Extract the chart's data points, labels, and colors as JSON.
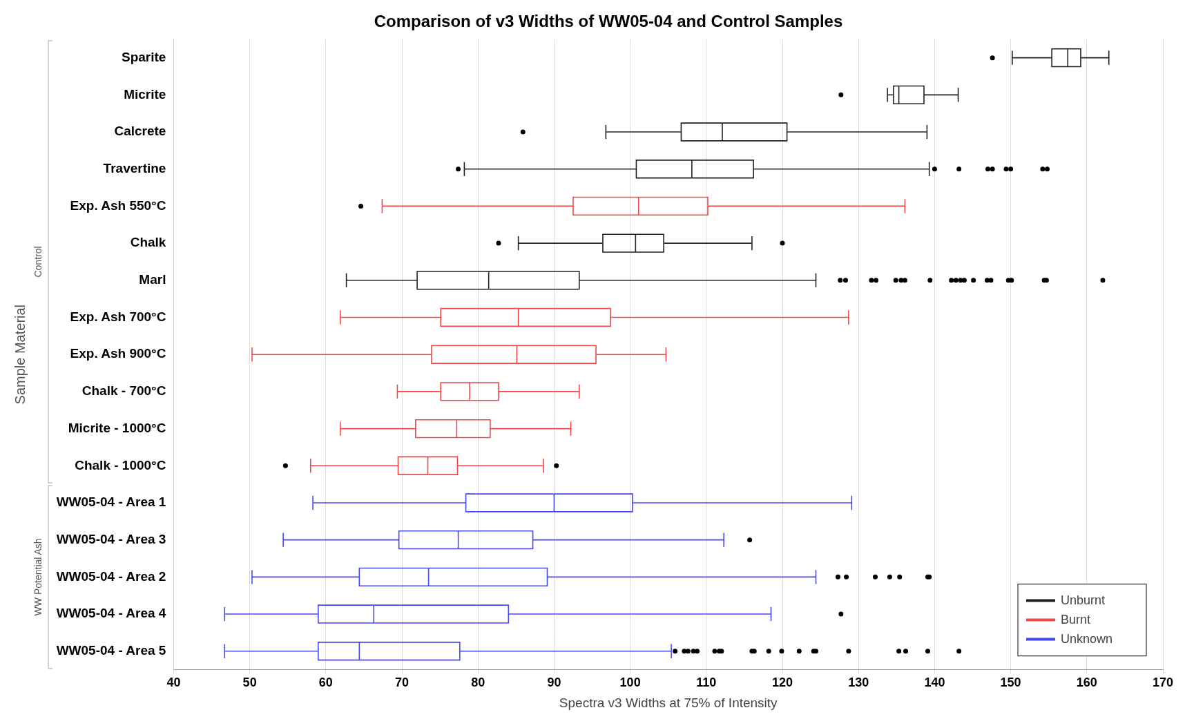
{
  "chart_data": {
    "type": "box",
    "orientation": "horizontal",
    "title": "Comparison of v3 Widths of WW05-04 and Control Samples",
    "xlabel": "Spectra v3 Widths at 75% of Intensity",
    "ylabel": "Sample Material",
    "annotations": [
      "Control",
      "WW Potential Ash"
    ],
    "categories": [
      "Sparite",
      "Micrite",
      "Calcrete",
      "Travertine",
      "Exp. Ash 550°C",
      "Chalk",
      "Marl",
      "Exp. Ash 700°C",
      "Exp. Ash 900°C",
      "Chalk - 700°C",
      "Micrite - 1000°C",
      "Chalk - 1000°C",
      "WW05-04 - Area 1",
      "WW05-04 - Area 3",
      "WW05-04 - Area 2",
      "WW05-04 - Area 4",
      "WW05-04 - Area 5"
    ],
    "series": [
      {
        "name": "Unburnt",
        "color": "#222222",
        "boxes": [
          {
            "low": 150.2,
            "q1": 155.4,
            "median": 157.5,
            "q3": 159.2,
            "high": 162.9,
            "outliers": [
              147.6
            ]
          },
          {
            "low": 133.8,
            "q1": 134.6,
            "median": 135.3,
            "q3": 138.6,
            "high": 143.1,
            "outliers": [
              127.7
            ]
          },
          {
            "low": 96.8,
            "q1": 106.7,
            "median": 112.1,
            "q3": 120.6,
            "high": 139.0,
            "outliers": [
              85.9
            ]
          },
          {
            "low": 78.2,
            "q1": 100.8,
            "median": 108.1,
            "q3": 116.2,
            "high": 139.3,
            "outliers": [
              77.4,
              140,
              143.2,
              147,
              147.6,
              149.4,
              150,
              154.2,
              154.8
            ]
          },
          null,
          {
            "low": 85.3,
            "q1": 96.4,
            "median": 100.7,
            "q3": 104.4,
            "high": 116.0,
            "outliers": [
              82.7,
              120.0
            ]
          },
          {
            "low": 62.7,
            "q1": 72.0,
            "median": 81.4,
            "q3": 93.3,
            "high": 124.4,
            "outliers": [
              127.6,
              128.3,
              131.7,
              132.3,
              134.9,
              135.6,
              136.1,
              139.4,
              142.2,
              142.8,
              143.4,
              143.9,
              145.1,
              146.9,
              147.4,
              149.7,
              150.1,
              154.4,
              154.7,
              162.1
            ]
          },
          null,
          null,
          null,
          null,
          null,
          null,
          null,
          null,
          null,
          null
        ]
      },
      {
        "name": "Burnt",
        "color": "#f04848",
        "boxes": [
          null,
          null,
          null,
          null,
          {
            "low": 67.4,
            "q1": 92.5,
            "median": 101.1,
            "q3": 110.2,
            "high": 136.1,
            "outliers": [
              64.6
            ]
          },
          null,
          null,
          {
            "low": 61.9,
            "q1": 75.1,
            "median": 85.3,
            "q3": 97.4,
            "high": 128.7
          },
          {
            "low": 50.3,
            "q1": 73.9,
            "median": 85.1,
            "q3": 95.5,
            "high": 104.7
          },
          {
            "low": 69.4,
            "q1": 75.1,
            "median": 78.9,
            "q3": 82.7,
            "high": 93.3
          },
          {
            "low": 61.9,
            "q1": 71.8,
            "median": 77.2,
            "q3": 81.6,
            "high": 92.2
          },
          {
            "low": 58.0,
            "q1": 69.5,
            "median": 73.4,
            "q3": 77.3,
            "high": 88.6,
            "outliers": [
              54.7,
              90.3
            ]
          },
          null,
          null,
          null,
          null,
          null
        ]
      },
      {
        "name": "Unknown",
        "color": "#4848f0",
        "boxes": [
          null,
          null,
          null,
          null,
          null,
          null,
          null,
          null,
          null,
          null,
          null,
          null,
          {
            "low": 58.3,
            "q1": 78.4,
            "median": 90.0,
            "q3": 100.3,
            "high": 129.1
          },
          {
            "low": 54.4,
            "q1": 69.6,
            "median": 77.4,
            "q3": 87.2,
            "high": 112.3,
            "outliers": [
              115.7
            ]
          },
          {
            "low": 50.3,
            "q1": 64.4,
            "median": 73.5,
            "q3": 89.1,
            "high": 124.4,
            "outliers": [
              127.3,
              128.4,
              132.2,
              134.1,
              135.4,
              139.1,
              139.3
            ]
          },
          {
            "low": 46.7,
            "q1": 59.0,
            "median": 66.3,
            "q3": 84.0,
            "high": 118.5,
            "outliers": [
              127.7
            ]
          },
          {
            "low": 46.7,
            "q1": 59.0,
            "median": 64.4,
            "q3": 77.6,
            "high": 105.4,
            "outliers": [
              105.9,
              107.1,
              107.6,
              108.3,
              108.8,
              111.1,
              111.7,
              112.0,
              116.0,
              116.3,
              118.2,
              119.9,
              122.2,
              124.1,
              124.4,
              128.7,
              135.3,
              136.2,
              139.1,
              143.2
            ]
          }
        ]
      }
    ],
    "xlim": [
      40,
      170
    ],
    "xticks": [
      40,
      50,
      60,
      70,
      80,
      90,
      100,
      110,
      120,
      130,
      140,
      150,
      160,
      170
    ],
    "grid": "x",
    "legend": "bottom right"
  }
}
